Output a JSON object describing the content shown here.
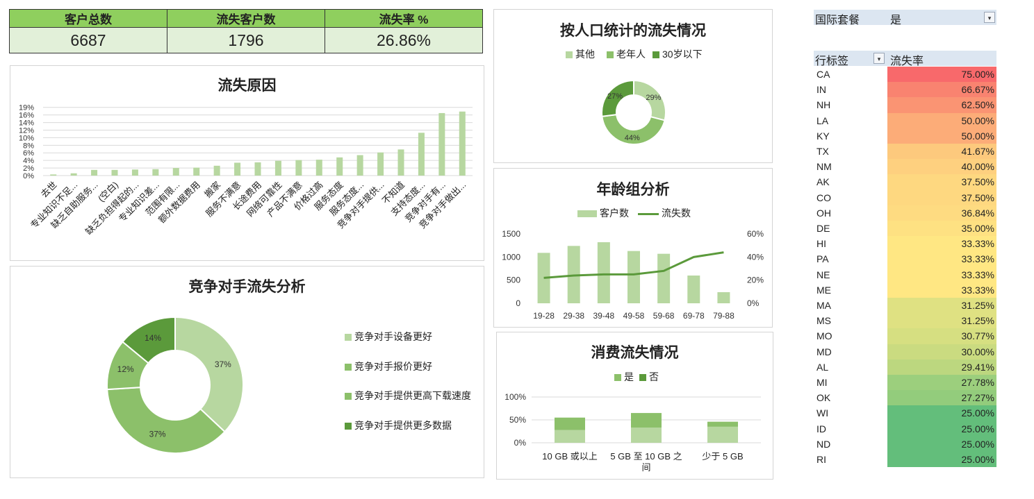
{
  "kpi": {
    "headers": [
      "客户总数",
      "流失客户数",
      "流失率 %"
    ],
    "values": [
      "6687",
      "1796",
      "26.86%"
    ]
  },
  "colors": {
    "light": "#b7d7a0",
    "mid": "#8cc06a",
    "dark": "#5b9a3b",
    "header_green": "#8fcf5e"
  },
  "chart_data": [
    {
      "id": "reasons",
      "type": "bar",
      "title": "流失原因",
      "categories": [
        "去世",
        "专业知识不足...",
        "缺乏自助服务...",
        "(空白)",
        "缺乏负担得起的...",
        "专业知识差...",
        "范围有限...",
        "额外数据费用",
        "搬家",
        "服务不满意",
        "长途费用",
        "网络可靠性",
        "产品不满意",
        "价格过高",
        "服务态度",
        "服务态度...",
        "竞争对手提供...",
        "不知道",
        "支持态度...",
        "竞争对手有...",
        "竞争对手做出..."
      ],
      "values": [
        0.3,
        0.6,
        1.5,
        1.5,
        1.6,
        1.7,
        2.0,
        2.1,
        2.6,
        3.4,
        3.5,
        3.9,
        4.1,
        4.2,
        4.8,
        5.4,
        6.1,
        6.9,
        11.3,
        16.5,
        16.9
      ],
      "yticks": [
        "0%",
        "2%",
        "4%",
        "6%",
        "8%",
        "10%",
        "12%",
        "14%",
        "16%",
        "19%"
      ],
      "ylim": [
        0,
        18.5
      ]
    },
    {
      "id": "demographics",
      "type": "pie",
      "title": "按人口统计的流失情况",
      "labels": [
        "其他",
        "老年人",
        "30岁以下"
      ],
      "values": [
        29,
        44,
        27
      ],
      "value_labels": [
        "29%",
        "44%",
        "27%"
      ]
    },
    {
      "id": "competitor",
      "type": "pie",
      "title": "竞争对手流失分析",
      "labels": [
        "竞争对手设备更好",
        "竞争对手报价更好",
        "竞争对手提供更高下载速度",
        "竞争对手提供更多数据"
      ],
      "values": [
        37,
        37,
        12,
        14
      ],
      "value_labels": [
        "37%",
        "37%",
        "12%",
        "14%"
      ]
    },
    {
      "id": "age",
      "type": "bar",
      "title": "年龄组分析",
      "categories": [
        "19-28",
        "29-38",
        "39-48",
        "49-58",
        "59-68",
        "69-78",
        "79-88"
      ],
      "series": [
        {
          "name": "客户数",
          "type": "bar",
          "values": [
            1090,
            1240,
            1320,
            1130,
            1070,
            600,
            240
          ]
        },
        {
          "name": "流失数",
          "type": "line",
          "axis": "right",
          "values": [
            22,
            24,
            25,
            25,
            28,
            40,
            44
          ]
        }
      ],
      "yticks_left": [
        "0",
        "500",
        "1000",
        "1500"
      ],
      "ylim_left": [
        0,
        1500
      ],
      "yticks_right": [
        "0%",
        "20%",
        "40%",
        "60%"
      ],
      "ylim_right": [
        0,
        60
      ]
    },
    {
      "id": "consumption",
      "type": "bar",
      "title": "消费流失情况",
      "categories": [
        "10 GB 或以上",
        "5 GB 至 10 GB 之间",
        "少于 5 GB"
      ],
      "series": [
        {
          "name": "是",
          "values": [
            28,
            33,
            35
          ]
        },
        {
          "name": "否",
          "values": [
            27,
            32,
            11
          ]
        }
      ],
      "stacked": true,
      "yticks": [
        "0%",
        "50%",
        "100%"
      ],
      "ylim": [
        0,
        100
      ]
    }
  ],
  "pivot": {
    "filter_label": "国际套餐",
    "filter_value": "是",
    "col_row_label": "行标签",
    "col_value_label": "流失率",
    "rows": [
      {
        "state": "CA",
        "rate": "75.00%",
        "color": "#f8696b"
      },
      {
        "state": "IN",
        "rate": "66.67%",
        "color": "#f98370"
      },
      {
        "state": "NH",
        "rate": "62.50%",
        "color": "#fa9473"
      },
      {
        "state": "LA",
        "rate": "50.00%",
        "color": "#fcac78"
      },
      {
        "state": "KY",
        "rate": "50.00%",
        "color": "#fcac78"
      },
      {
        "state": "TX",
        "rate": "41.67%",
        "color": "#fdc97d"
      },
      {
        "state": "NM",
        "rate": "40.00%",
        "color": "#fed07f"
      },
      {
        "state": "AK",
        "rate": "37.50%",
        "color": "#fed880"
      },
      {
        "state": "CO",
        "rate": "37.50%",
        "color": "#fed880"
      },
      {
        "state": "OH",
        "rate": "36.84%",
        "color": "#fedb81"
      },
      {
        "state": "DE",
        "rate": "35.00%",
        "color": "#fee182"
      },
      {
        "state": "HI",
        "rate": "33.33%",
        "color": "#ffe783"
      },
      {
        "state": "PA",
        "rate": "33.33%",
        "color": "#ffe783"
      },
      {
        "state": "NE",
        "rate": "33.33%",
        "color": "#ffe783"
      },
      {
        "state": "ME",
        "rate": "33.33%",
        "color": "#ffe783"
      },
      {
        "state": "MA",
        "rate": "31.25%",
        "color": "#dfe182"
      },
      {
        "state": "MS",
        "rate": "31.25%",
        "color": "#dfe182"
      },
      {
        "state": "MO",
        "rate": "30.77%",
        "color": "#d6df81"
      },
      {
        "state": "MD",
        "rate": "30.00%",
        "color": "#cadb80"
      },
      {
        "state": "AL",
        "rate": "29.41%",
        "color": "#bcd77f"
      },
      {
        "state": "MI",
        "rate": "27.78%",
        "color": "#9ccf7d"
      },
      {
        "state": "OK",
        "rate": "27.27%",
        "color": "#93cc7c"
      },
      {
        "state": "WI",
        "rate": "25.00%",
        "color": "#63be7b"
      },
      {
        "state": "ID",
        "rate": "25.00%",
        "color": "#63be7b"
      },
      {
        "state": "ND",
        "rate": "25.00%",
        "color": "#63be7b"
      },
      {
        "state": "RI",
        "rate": "25.00%",
        "color": "#63be7b"
      }
    ]
  }
}
